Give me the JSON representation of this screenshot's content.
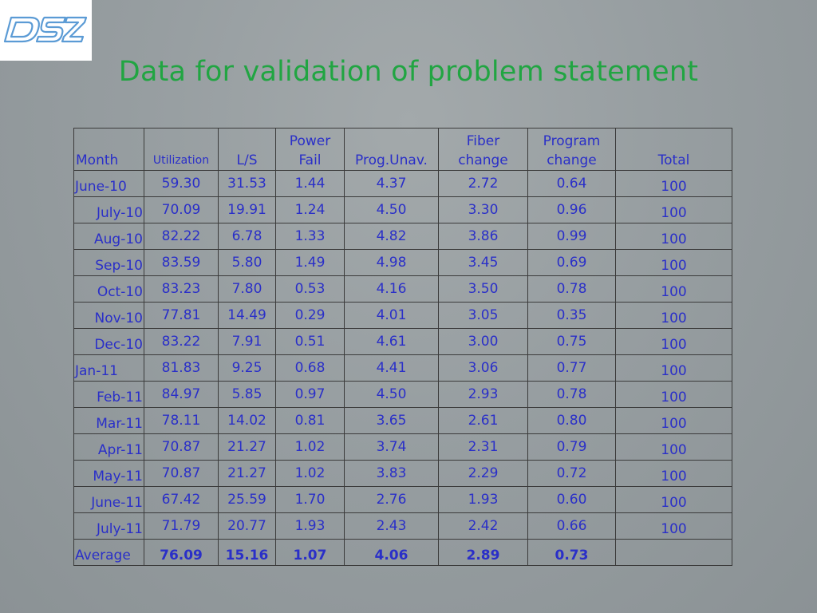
{
  "logo": {
    "text": "DSZ"
  },
  "title": "Data for validation of problem statement",
  "table": {
    "headers": {
      "month": "Month",
      "utilization": "Utilization",
      "ls": "L/S",
      "power_fail_1": "Power",
      "power_fail_2": "Fail",
      "prog_unav": "Prog.Unav.",
      "fiber_change_1": "Fiber",
      "fiber_change_2": "change",
      "program_change_1": "Program",
      "program_change_2": "change",
      "total": "Total"
    },
    "rows": [
      {
        "month": "June-10",
        "utilization": "59.30",
        "ls": "31.53",
        "power_fail": "1.44",
        "prog_unav": "4.37",
        "fiber_change": "2.72",
        "program_change": "0.64",
        "total": "100"
      },
      {
        "month": "July-10",
        "utilization": "70.09",
        "ls": "19.91",
        "power_fail": "1.24",
        "prog_unav": "4.50",
        "fiber_change": "3.30",
        "program_change": "0.96",
        "total": "100"
      },
      {
        "month": "Aug-10",
        "utilization": "82.22",
        "ls": "6.78",
        "power_fail": "1.33",
        "prog_unav": "4.82",
        "fiber_change": "3.86",
        "program_change": "0.99",
        "total": "100"
      },
      {
        "month": "Sep-10",
        "utilization": "83.59",
        "ls": "5.80",
        "power_fail": "1.49",
        "prog_unav": "4.98",
        "fiber_change": "3.45",
        "program_change": "0.69",
        "total": "100"
      },
      {
        "month": "Oct-10",
        "utilization": "83.23",
        "ls": "7.80",
        "power_fail": "0.53",
        "prog_unav": "4.16",
        "fiber_change": "3.50",
        "program_change": "0.78",
        "total": "100"
      },
      {
        "month": "Nov-10",
        "utilization": "77.81",
        "ls": "14.49",
        "power_fail": "0.29",
        "prog_unav": "4.01",
        "fiber_change": "3.05",
        "program_change": "0.35",
        "total": "100"
      },
      {
        "month": "Dec-10",
        "utilization": "83.22",
        "ls": "7.91",
        "power_fail": "0.51",
        "prog_unav": "4.61",
        "fiber_change": "3.00",
        "program_change": "0.75",
        "total": "100"
      },
      {
        "month": "Jan-11",
        "utilization": "81.83",
        "ls": "9.25",
        "power_fail": "0.68",
        "prog_unav": "4.41",
        "fiber_change": "3.06",
        "program_change": "0.77",
        "total": "100"
      },
      {
        "month": "Feb-11",
        "utilization": "84.97",
        "ls": "5.85",
        "power_fail": "0.97",
        "prog_unav": "4.50",
        "fiber_change": "2.93",
        "program_change": "0.78",
        "total": "100"
      },
      {
        "month": "Mar-11",
        "utilization": "78.11",
        "ls": "14.02",
        "power_fail": "0.81",
        "prog_unav": "3.65",
        "fiber_change": "2.61",
        "program_change": "0.80",
        "total": "100"
      },
      {
        "month": "Apr-11",
        "utilization": "70.87",
        "ls": "21.27",
        "power_fail": "1.02",
        "prog_unav": "3.74",
        "fiber_change": "2.31",
        "program_change": "0.79",
        "total": "100"
      },
      {
        "month": "May-11",
        "utilization": "70.87",
        "ls": "21.27",
        "power_fail": "1.02",
        "prog_unav": "3.83",
        "fiber_change": "2.29",
        "program_change": "0.72",
        "total": "100"
      },
      {
        "month": "June-11",
        "utilization": "67.42",
        "ls": "25.59",
        "power_fail": "1.70",
        "prog_unav": "2.76",
        "fiber_change": "1.93",
        "program_change": "0.60",
        "total": "100"
      },
      {
        "month": "July-11",
        "utilization": "71.79",
        "ls": "20.77",
        "power_fail": "1.93",
        "prog_unav": "2.43",
        "fiber_change": "2.42",
        "program_change": "0.66",
        "total": "100"
      }
    ],
    "average": {
      "label": "Average",
      "utilization": "76.09",
      "ls": "15.16",
      "power_fail": "1.07",
      "prog_unav": "4.06",
      "fiber_change": "2.89",
      "program_change": "0.73",
      "total": ""
    }
  },
  "colors": {
    "title": "#21a542",
    "table_text": "#2a2fc8",
    "logo": "#5b9bd5"
  }
}
